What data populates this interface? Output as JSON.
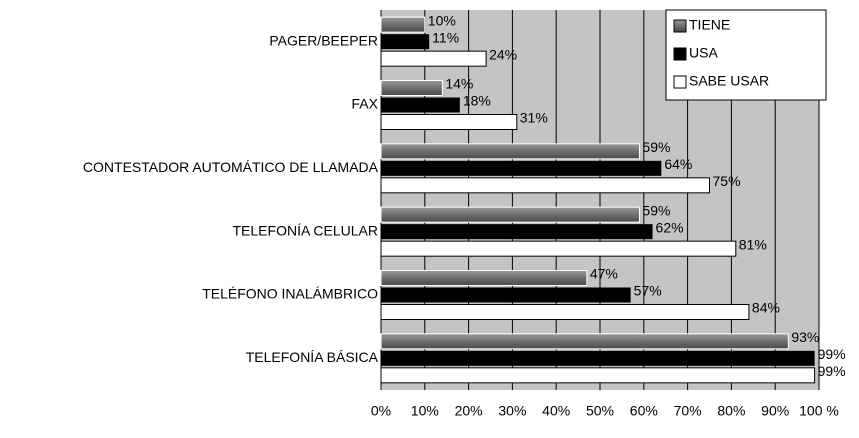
{
  "chart_data": {
    "type": "barh",
    "categories": [
      "PAGER/BEEPER",
      "FAX",
      "CONTESTADOR AUTOMÁTICO DE LLAMADA",
      "TELEFONÍA CELULAR",
      "TELÉFONO INALÁMBRICO",
      "TELEFONÍA BÁSICA"
    ],
    "series": [
      {
        "name": "TIENE",
        "color": "#6e6e6e",
        "values": [
          10,
          14,
          59,
          59,
          47,
          93
        ],
        "value_labels": [
          "10%",
          "14%",
          "59%",
          "59%",
          "47%",
          "93%"
        ]
      },
      {
        "name": "USA",
        "color": "#000000",
        "values": [
          11,
          18,
          64,
          62,
          57,
          99
        ],
        "value_labels": [
          "11%",
          "18%",
          "64%",
          "62%",
          "57%",
          "99%"
        ]
      },
      {
        "name": "SABE USAR",
        "color": "#ffffff",
        "values": [
          24,
          31,
          75,
          81,
          84,
          99
        ],
        "value_labels": [
          "24%",
          "31%",
          "75%",
          "81%",
          "84%",
          "99%"
        ]
      }
    ],
    "xlim": [
      0,
      100
    ],
    "xticks": [
      {
        "value": 0,
        "label": "0%"
      },
      {
        "value": 10,
        "label": "10%"
      },
      {
        "value": 20,
        "label": "20%"
      },
      {
        "value": 30,
        "label": "30%"
      },
      {
        "value": 40,
        "label": "40%"
      },
      {
        "value": 50,
        "label": "50%"
      },
      {
        "value": 60,
        "label": "60%"
      },
      {
        "value": 70,
        "label": "70%"
      },
      {
        "value": 80,
        "label": "80%"
      },
      {
        "value": 90,
        "label": "90%"
      },
      {
        "value": 100,
        "label": "100 %"
      }
    ],
    "grid": true,
    "legend": "upper right"
  }
}
